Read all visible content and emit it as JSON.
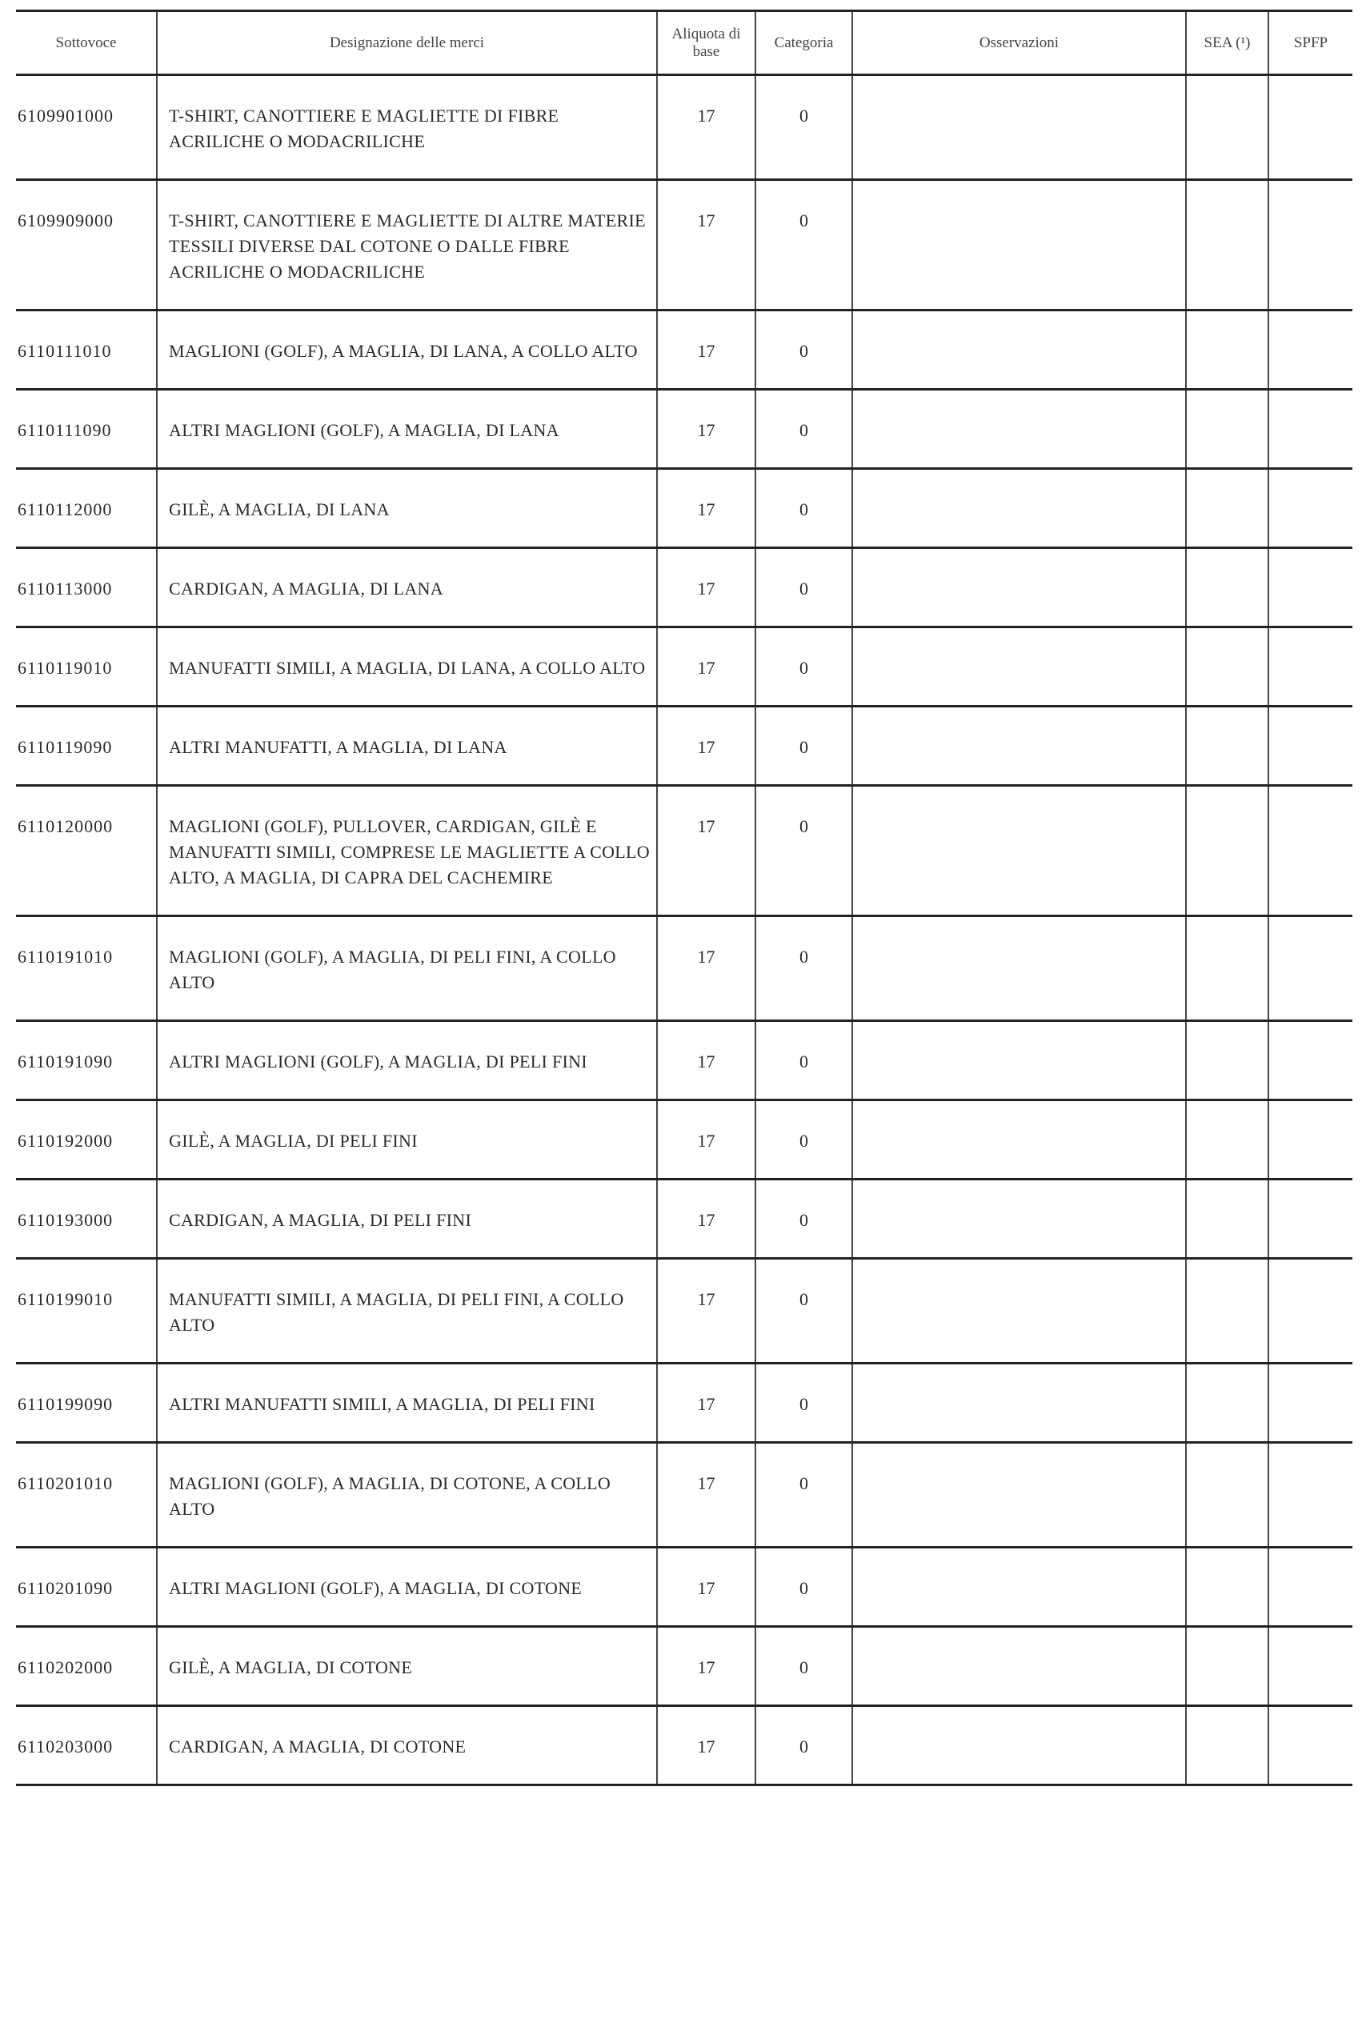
{
  "table": {
    "headers": [
      "Sottovoce",
      "Designazione delle merci",
      "Aliquota di base",
      "Categoria",
      "Osservazioni",
      "SEA (¹)",
      "SPFP"
    ],
    "rows": [
      {
        "code": "6109901000",
        "desc": "T-SHIRT, CANOTTIERE E MAGLIETTE DI FIBRE ACRILICHE O MODACRILICHE",
        "rate": "17",
        "cat": "0",
        "obs": "",
        "sea": "",
        "spfp": ""
      },
      {
        "code": "6109909000",
        "desc": "T-SHIRT, CANOTTIERE E MAGLIETTE DI ALTRE MATERIE TESSILI DIVERSE DAL COTONE O DALLE FIBRE ACRILICHE O MODACRILICHE",
        "rate": "17",
        "cat": "0",
        "obs": "",
        "sea": "",
        "spfp": ""
      },
      {
        "code": "6110111010",
        "desc": "MAGLIONI (GOLF), A MAGLIA, DI LANA, A COLLO ALTO",
        "rate": "17",
        "cat": "0",
        "obs": "",
        "sea": "",
        "spfp": ""
      },
      {
        "code": "6110111090",
        "desc": "ALTRI MAGLIONI (GOLF), A MAGLIA, DI LANA",
        "rate": "17",
        "cat": "0",
        "obs": "",
        "sea": "",
        "spfp": ""
      },
      {
        "code": "6110112000",
        "desc": "GILÈ, A MAGLIA, DI LANA",
        "rate": "17",
        "cat": "0",
        "obs": "",
        "sea": "",
        "spfp": ""
      },
      {
        "code": "6110113000",
        "desc": "CARDIGAN, A MAGLIA, DI LANA",
        "rate": "17",
        "cat": "0",
        "obs": "",
        "sea": "",
        "spfp": ""
      },
      {
        "code": "6110119010",
        "desc": "MANUFATTI SIMILI, A MAGLIA, DI LANA, A COLLO ALTO",
        "rate": "17",
        "cat": "0",
        "obs": "",
        "sea": "",
        "spfp": ""
      },
      {
        "code": "6110119090",
        "desc": "ALTRI MANUFATTI, A MAGLIA, DI LANA",
        "rate": "17",
        "cat": "0",
        "obs": "",
        "sea": "",
        "spfp": ""
      },
      {
        "code": "6110120000",
        "desc": "MAGLIONI (GOLF), PULLOVER, CARDIGAN, GILÈ E MANUFATTI SIMILI, COMPRESE LE MAGLIETTE A COLLO ALTO, A MAGLIA, DI CAPRA DEL CACHEMIRE",
        "rate": "17",
        "cat": "0",
        "obs": "",
        "sea": "",
        "spfp": ""
      },
      {
        "code": "6110191010",
        "desc": "MAGLIONI (GOLF), A MAGLIA, DI PELI FINI, A COLLO ALTO",
        "rate": "17",
        "cat": "0",
        "obs": "",
        "sea": "",
        "spfp": ""
      },
      {
        "code": "6110191090",
        "desc": "ALTRI MAGLIONI (GOLF), A MAGLIA, DI PELI FINI",
        "rate": "17",
        "cat": "0",
        "obs": "",
        "sea": "",
        "spfp": ""
      },
      {
        "code": "6110192000",
        "desc": "GILÈ, A MAGLIA, DI PELI FINI",
        "rate": "17",
        "cat": "0",
        "obs": "",
        "sea": "",
        "spfp": ""
      },
      {
        "code": "6110193000",
        "desc": "CARDIGAN, A MAGLIA, DI PELI FINI",
        "rate": "17",
        "cat": "0",
        "obs": "",
        "sea": "",
        "spfp": ""
      },
      {
        "code": "6110199010",
        "desc": "MANUFATTI SIMILI, A MAGLIA, DI PELI FINI, A COLLO ALTO",
        "rate": "17",
        "cat": "0",
        "obs": "",
        "sea": "",
        "spfp": ""
      },
      {
        "code": "6110199090",
        "desc": "ALTRI MANUFATTI SIMILI, A MAGLIA, DI PELI FINI",
        "rate": "17",
        "cat": "0",
        "obs": "",
        "sea": "",
        "spfp": ""
      },
      {
        "code": "6110201010",
        "desc": "MAGLIONI (GOLF), A MAGLIA, DI COTONE, A COLLO ALTO",
        "rate": "17",
        "cat": "0",
        "obs": "",
        "sea": "",
        "spfp": ""
      },
      {
        "code": "6110201090",
        "desc": "ALTRI MAGLIONI (GOLF), A MAGLIA, DI COTONE",
        "rate": "17",
        "cat": "0",
        "obs": "",
        "sea": "",
        "spfp": ""
      },
      {
        "code": "6110202000",
        "desc": "GILÈ, A MAGLIA, DI COTONE",
        "rate": "17",
        "cat": "0",
        "obs": "",
        "sea": "",
        "spfp": ""
      },
      {
        "code": "6110203000",
        "desc": "CARDIGAN, A MAGLIA, DI COTONE",
        "rate": "17",
        "cat": "0",
        "obs": "",
        "sea": "",
        "spfp": ""
      }
    ]
  }
}
